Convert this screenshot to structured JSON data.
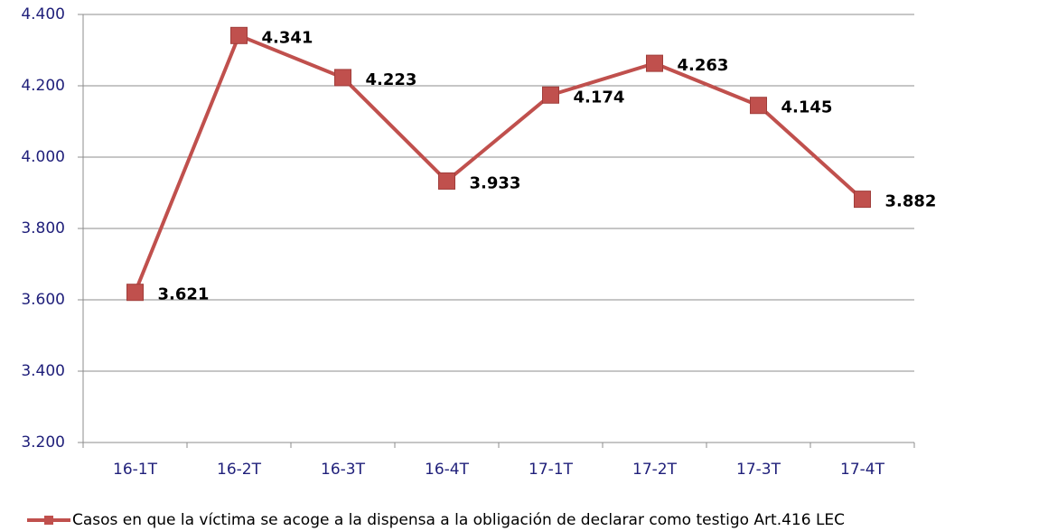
{
  "chart_data": {
    "type": "line",
    "categories": [
      "16-1T",
      "16-2T",
      "16-3T",
      "16-4T",
      "17-1T",
      "17-2T",
      "17-3T",
      "17-4T"
    ],
    "series": [
      {
        "name": "Casos en que la víctima se acoge a la dispensa a la obligación de declarar como testigo Art.416 LEC",
        "color": "#c0504d",
        "values": [
          3621,
          4341,
          4223,
          3933,
          4174,
          4263,
          4145,
          3882
        ],
        "value_labels": [
          "3.621",
          "4.341",
          "4.223",
          "3.933",
          "4.174",
          "4.263",
          "4.145",
          "3.882"
        ]
      }
    ],
    "ylim": [
      3200,
      4400
    ],
    "yticks": [
      {
        "value": 3200,
        "label": "3.200"
      },
      {
        "value": 3400,
        "label": "3.400"
      },
      {
        "value": 3600,
        "label": "3.600"
      },
      {
        "value": 3800,
        "label": "3.800"
      },
      {
        "value": 4000,
        "label": "4.000"
      },
      {
        "value": 4200,
        "label": "4.200"
      },
      {
        "value": 4400,
        "label": "4.400"
      }
    ],
    "grid": true,
    "legend": "bottom"
  }
}
